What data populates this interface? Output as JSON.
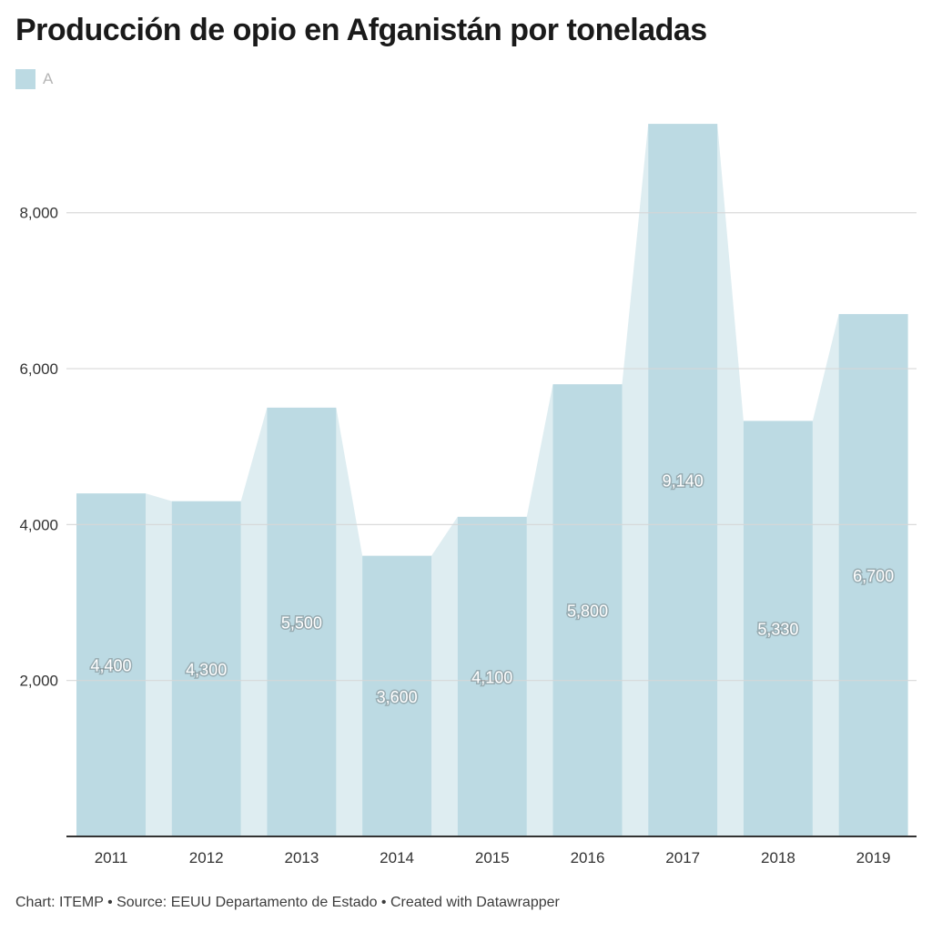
{
  "title": "Producción de opio en Afganistán por toneladas",
  "legend": {
    "label": "A",
    "color": "#bcdae3"
  },
  "footer": "Chart: ITEMP • Source: EEUU Departamento de Estado • Created with Datawrapper",
  "chart_data": {
    "type": "bar",
    "title": "Producción de opio en Afganistán por toneladas",
    "categories": [
      "2011",
      "2012",
      "2013",
      "2014",
      "2015",
      "2016",
      "2017",
      "2018",
      "2019"
    ],
    "values": [
      4400,
      4300,
      5500,
      3600,
      4100,
      5800,
      9140,
      5330,
      6700
    ],
    "value_labels": [
      "4,400",
      "4,300",
      "5,500",
      "3,600",
      "4,100",
      "5,800",
      "9,140",
      "5,330",
      "6,700"
    ],
    "ylim": [
      0,
      9140
    ],
    "yticks": [
      2000,
      4000,
      6000,
      8000
    ],
    "ytick_labels": [
      "2,000",
      "4,000",
      "6,000",
      "8,000"
    ],
    "grid": true,
    "legend_position": "top-left",
    "bar_color": "#bcdae3",
    "connector_color": "#deedf1",
    "grid_color": "#d6d6d6",
    "axis_color": "#333333"
  }
}
